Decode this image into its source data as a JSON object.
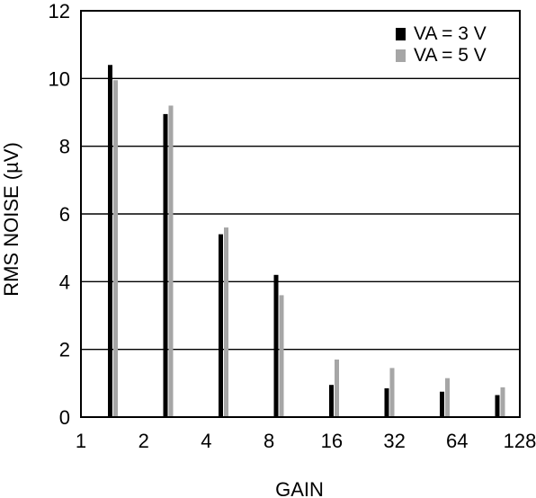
{
  "chart_data": {
    "type": "bar",
    "title": "",
    "xlabel": "GAIN",
    "ylabel": "RMS NOISE (µV)",
    "x_tick_labels": [
      "1",
      "2",
      "4",
      "8",
      "16",
      "32",
      "64",
      "128"
    ],
    "categories": [
      "1",
      "2",
      "4",
      "8",
      "16",
      "32",
      "64",
      "128"
    ],
    "y_ticks": [
      "0",
      "2",
      "4",
      "6",
      "8",
      "10",
      "12"
    ],
    "ylim": [
      0,
      12
    ],
    "grid": "horizontal",
    "legend_position": "top-right",
    "series": [
      {
        "name": "VA = 3 V",
        "color": "#000000",
        "values": [
          10.4,
          8.95,
          5.4,
          4.2,
          0.95,
          0.85,
          0.75,
          0.65
        ]
      },
      {
        "name": "VA = 5 V",
        "color": "#a6a6a6",
        "values": [
          9.95,
          9.2,
          5.6,
          3.6,
          1.7,
          1.45,
          1.15,
          0.88
        ]
      }
    ]
  }
}
